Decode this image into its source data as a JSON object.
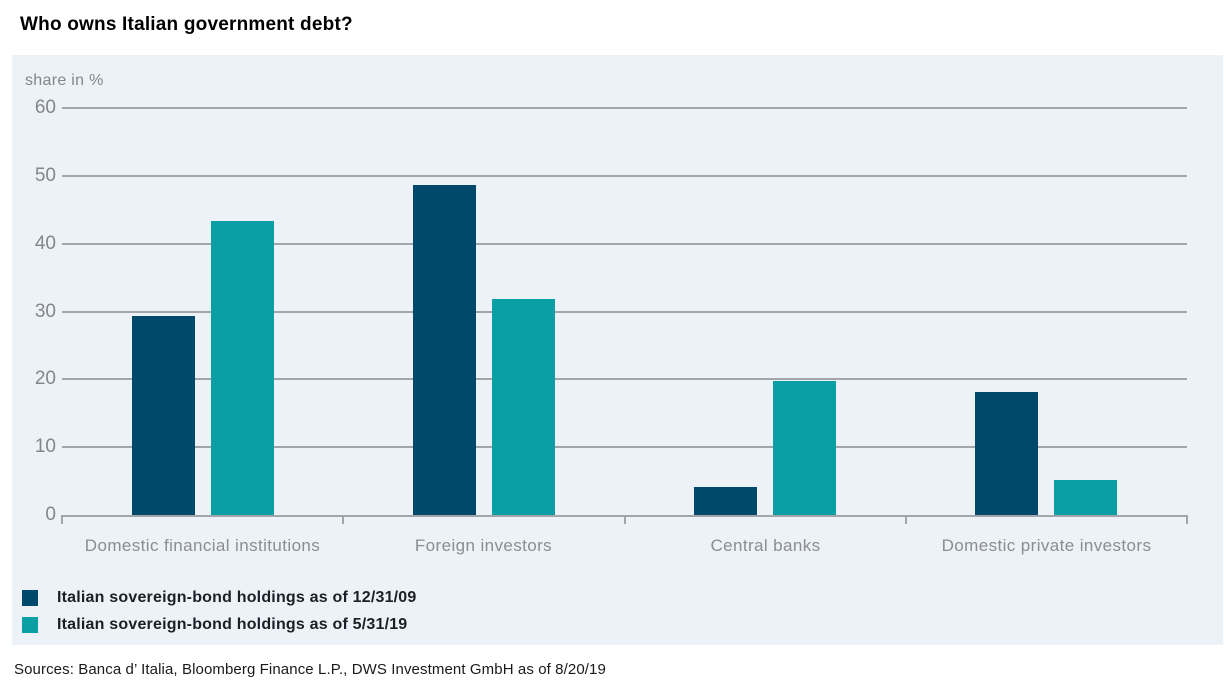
{
  "title": "Who owns Italian government debt?",
  "chart_data": {
    "type": "bar",
    "title": "Who owns Italian government debt?",
    "unit_label": "share in %",
    "categories": [
      "Domestic financial institutions",
      "Foreign investors",
      "Central banks",
      "Domestic private investors"
    ],
    "series": [
      {
        "name": "Italian sovereign-bond holdings as of 12/31/09",
        "color": "#00496d",
        "values": [
          29.3,
          48.7,
          4.1,
          18.1
        ]
      },
      {
        "name": "Italian sovereign-bond holdings as of 5/31/19",
        "color": "#0a9fa2",
        "values": [
          43.4,
          31.9,
          19.7,
          5.1
        ]
      }
    ],
    "ylim": [
      0,
      60
    ],
    "yticks": [
      0,
      10,
      20,
      30,
      40,
      50,
      60
    ],
    "grid": "horizontal",
    "legend_position": "bottom-left"
  },
  "footer": {
    "sources": "Sources: Banca d’ Italia, Bloomberg Finance L.P., DWS Investment GmbH as of 8/20/19"
  },
  "colors": {
    "panel_bg": "#edf1f8",
    "grid": "#a2a6ab",
    "tick_label": "#83878b",
    "category_label": "#8a8e92",
    "legend_text": "#1c2026",
    "title": "#000000"
  }
}
